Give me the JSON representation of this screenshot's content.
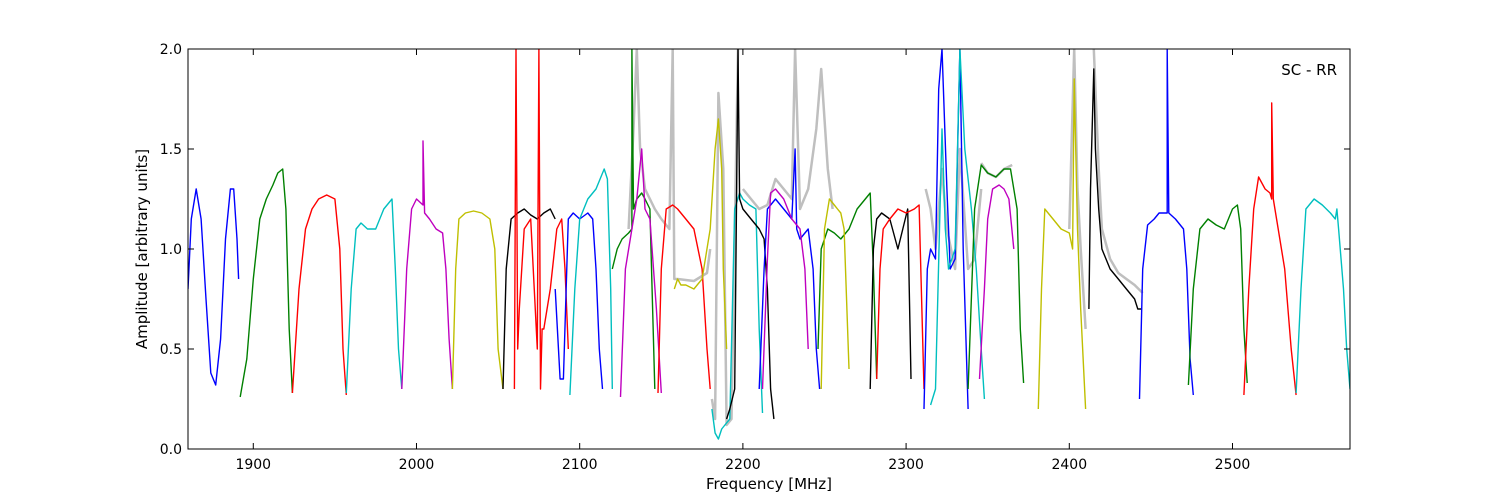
{
  "chart_data": {
    "type": "line",
    "title": "",
    "xlabel": "Frequency [MHz]",
    "ylabel": "Amplitude [arbitrary units]",
    "xlim": [
      1860,
      2572
    ],
    "ylim": [
      0.0,
      2.0
    ],
    "xticks": [
      1900,
      2000,
      2100,
      2200,
      2300,
      2400,
      2500
    ],
    "xtick_labels": [
      "1900",
      "2000",
      "2100",
      "2200",
      "2300",
      "2400",
      "2500"
    ],
    "yticks": [
      0.0,
      0.5,
      1.0,
      1.5,
      2.0
    ],
    "ytick_labels": [
      "0.0",
      "0.5",
      "1.0",
      "1.5",
      "2.0"
    ],
    "annotation": "SC - RR",
    "annotation_position": "top-right",
    "grid": false,
    "reference_color": "#bfbfbf",
    "reference_segments": [
      {
        "x": [
          2130,
          2133,
          2135,
          2137,
          2140,
          2143,
          2146,
          2150
        ],
        "y": [
          1.1,
          1.6,
          2.0,
          1.5,
          1.3,
          1.25,
          1.2,
          1.15
        ]
      },
      {
        "x": [
          2150,
          2155,
          2157,
          2158,
          2160,
          2170,
          2178,
          2180
        ],
        "y": [
          1.15,
          1.1,
          2.0,
          0.85,
          0.85,
          0.84,
          0.88,
          1.0
        ]
      },
      {
        "x": [
          2181,
          2183,
          2185,
          2188,
          2190,
          2193,
          2197
        ],
        "y": [
          0.25,
          0.15,
          1.78,
          1.4,
          0.12,
          0.15,
          2.0
        ]
      },
      {
        "x": [
          2200,
          2205,
          2210,
          2215,
          2220,
          2225,
          2230,
          2232,
          2235,
          2240,
          2245,
          2248,
          2252,
          2255
        ],
        "y": [
          1.3,
          1.25,
          1.2,
          1.22,
          1.35,
          1.3,
          1.25,
          2.0,
          1.2,
          1.3,
          1.6,
          1.9,
          1.4,
          1.2
        ]
      },
      {
        "x": [
          2312,
          2315,
          2318,
          2322,
          2325,
          2330,
          2333,
          2338,
          2342,
          2346
        ],
        "y": [
          1.3,
          1.2,
          1.0,
          1.4,
          1.1,
          0.9,
          1.5,
          0.9,
          0.95,
          1.3
        ]
      },
      {
        "x": [
          2346,
          2350,
          2355,
          2360,
          2365
        ],
        "y": [
          1.43,
          1.38,
          1.36,
          1.4,
          1.42
        ]
      },
      {
        "x": [
          2400,
          2403,
          2405,
          2407,
          2410
        ],
        "y": [
          1.1,
          2.0,
          1.3,
          1.0,
          0.6
        ]
      },
      {
        "x": [
          2415,
          2418,
          2420,
          2425,
          2430,
          2435,
          2440,
          2445
        ],
        "y": [
          2.0,
          1.4,
          1.1,
          0.95,
          0.88,
          0.85,
          0.82,
          0.78
        ]
      }
    ],
    "series": [
      {
        "color": "#0000ff",
        "x": [
          1860,
          1862,
          1865,
          1868,
          1871,
          1874,
          1877,
          1880,
          1883,
          1886,
          1888,
          1890,
          1891
        ],
        "y": [
          0.8,
          1.15,
          1.3,
          1.15,
          0.75,
          0.38,
          0.32,
          0.55,
          1.05,
          1.3,
          1.3,
          1.05,
          0.85
        ]
      },
      {
        "color": "#008000",
        "x": [
          1892,
          1896,
          1900,
          1904,
          1908,
          1912,
          1915,
          1918,
          1920,
          1922,
          1924
        ],
        "y": [
          0.26,
          0.45,
          0.85,
          1.15,
          1.25,
          1.32,
          1.38,
          1.4,
          1.2,
          0.6,
          0.28
        ]
      },
      {
        "color": "#ff0000",
        "x": [
          1924,
          1928,
          1932,
          1936,
          1940,
          1945,
          1950,
          1953,
          1955,
          1957
        ],
        "y": [
          0.28,
          0.8,
          1.1,
          1.2,
          1.25,
          1.27,
          1.25,
          1.0,
          0.5,
          0.27
        ]
      },
      {
        "color": "#00bfbf",
        "x": [
          1957,
          1960,
          1963,
          1966,
          1970,
          1975,
          1980,
          1985,
          1987,
          1989,
          1991
        ],
        "y": [
          0.28,
          0.8,
          1.1,
          1.13,
          1.1,
          1.1,
          1.2,
          1.25,
          0.9,
          0.5,
          0.3
        ]
      },
      {
        "color": "#bf00bf",
        "x": [
          1991,
          1994,
          1997,
          2000,
          2004,
          2004,
          2005,
          2008,
          2012,
          2016,
          2018,
          2020,
          2022
        ],
        "y": [
          0.3,
          0.9,
          1.2,
          1.25,
          1.22,
          1.54,
          1.18,
          1.15,
          1.1,
          1.08,
          0.9,
          0.55,
          0.3
        ]
      },
      {
        "color": "#bfbf00",
        "x": [
          2022,
          2024,
          2026,
          2030,
          2035,
          2040,
          2045,
          2048,
          2050,
          2053
        ],
        "y": [
          0.3,
          0.9,
          1.15,
          1.18,
          1.19,
          1.18,
          1.15,
          1.0,
          0.5,
          0.3
        ]
      },
      {
        "color": "#000000",
        "x": [
          2053,
          2055,
          2058,
          2062,
          2066,
          2070,
          2074,
          2078,
          2082,
          2085
        ],
        "y": [
          0.3,
          0.9,
          1.15,
          1.18,
          1.2,
          1.17,
          1.15,
          1.18,
          1.2,
          1.15
        ]
      },
      {
        "color": "#ff0000",
        "x": [
          2060,
          2061,
          2062,
          2063,
          2066,
          2070,
          2074,
          2075,
          2076,
          2077,
          2078,
          2082,
          2086,
          2089,
          2091,
          2093
        ],
        "y": [
          0.3,
          2.0,
          0.5,
          0.7,
          1.1,
          1.15,
          0.5,
          2.0,
          0.3,
          0.6,
          0.6,
          0.8,
          1.1,
          1.15,
          0.9,
          0.5
        ]
      },
      {
        "color": "#0000ff",
        "x": [
          2085,
          2088,
          2090,
          2093,
          2096,
          2100,
          2105,
          2108,
          2110,
          2112,
          2114
        ],
        "y": [
          0.8,
          0.35,
          0.35,
          1.15,
          1.18,
          1.15,
          1.18,
          1.15,
          0.9,
          0.5,
          0.3
        ]
      },
      {
        "color": "#00bfbf",
        "x": [
          2094,
          2097,
          2100,
          2105,
          2110,
          2115,
          2117,
          2119,
          2120
        ],
        "y": [
          0.27,
          0.8,
          1.15,
          1.25,
          1.3,
          1.4,
          1.35,
          0.8,
          0.3
        ]
      },
      {
        "color": "#008000",
        "x": [
          2120,
          2123,
          2126,
          2130,
          2132,
          2132,
          2133,
          2135,
          2138,
          2140,
          2143,
          2146
        ],
        "y": [
          0.9,
          1.0,
          1.05,
          1.08,
          1.1,
          2.0,
          1.2,
          1.25,
          1.28,
          1.25,
          1.2,
          0.3
        ]
      },
      {
        "color": "#bf00bf",
        "x": [
          2125,
          2128,
          2132,
          2135,
          2138,
          2140,
          2143,
          2147,
          2150
        ],
        "y": [
          0.26,
          0.9,
          1.1,
          1.25,
          1.5,
          1.2,
          1.15,
          0.7,
          0.28
        ]
      },
      {
        "color": "#ff0000",
        "x": [
          2148,
          2150,
          2153,
          2157,
          2160,
          2165,
          2170,
          2175,
          2178,
          2180
        ],
        "y": [
          0.28,
          0.9,
          1.2,
          1.22,
          1.2,
          1.15,
          1.1,
          0.9,
          0.5,
          0.3
        ]
      },
      {
        "color": "#bfbf00",
        "x": [
          2158,
          2160,
          2162,
          2165,
          2170,
          2175,
          2180,
          2183,
          2185,
          2187,
          2188,
          2190
        ],
        "y": [
          0.8,
          0.85,
          0.82,
          0.82,
          0.8,
          0.85,
          1.1,
          1.5,
          1.65,
          1.4,
          0.9,
          0.5
        ]
      },
      {
        "color": "#00bfbf",
        "x": [
          2181,
          2183,
          2185,
          2187,
          2189,
          2192,
          2195,
          2198,
          2200,
          2204,
          2208,
          2210,
          2212
        ],
        "y": [
          0.2,
          0.08,
          0.05,
          0.1,
          0.12,
          0.15,
          1.2,
          1.28,
          1.25,
          1.22,
          1.2,
          0.6,
          0.18
        ]
      },
      {
        "color": "#000000",
        "x": [
          2190,
          2192,
          2195,
          2197,
          2198,
          2200,
          2205,
          2210,
          2213,
          2215,
          2217,
          2219
        ],
        "y": [
          0.15,
          0.2,
          0.3,
          2.0,
          1.25,
          1.2,
          1.15,
          1.1,
          1.05,
          0.8,
          0.3,
          0.15
        ]
      },
      {
        "color": "#0000ff",
        "x": [
          2210,
          2213,
          2215,
          2220,
          2225,
          2230,
          2232,
          2233,
          2235,
          2240,
          2243,
          2245,
          2247
        ],
        "y": [
          0.3,
          0.9,
          1.2,
          1.25,
          1.2,
          1.15,
          1.5,
          1.1,
          1.05,
          1.1,
          0.9,
          0.5,
          0.3
        ]
      },
      {
        "color": "#bf00bf",
        "x": [
          2212,
          2215,
          2217,
          2220,
          2225,
          2230,
          2235,
          2238,
          2240
        ],
        "y": [
          0.3,
          0.95,
          1.28,
          1.3,
          1.25,
          1.15,
          1.1,
          0.9,
          0.5
        ]
      },
      {
        "color": "#008000",
        "x": [
          2246,
          2248,
          2252,
          2256,
          2260,
          2265,
          2270,
          2275,
          2278,
          2280,
          2282
        ],
        "y": [
          0.5,
          1.0,
          1.1,
          1.08,
          1.05,
          1.1,
          1.2,
          1.25,
          1.28,
          0.9,
          0.35
        ]
      },
      {
        "color": "#bfbf00",
        "x": [
          2248,
          2250,
          2253,
          2256,
          2258,
          2260,
          2262,
          2265
        ],
        "y": [
          0.3,
          1.1,
          1.25,
          1.22,
          1.2,
          1.18,
          1.1,
          0.4
        ]
      },
      {
        "color": "#000000",
        "x": [
          2278,
          2280,
          2282,
          2285,
          2290,
          2295,
          2298,
          2301,
          2303
        ],
        "y": [
          0.3,
          1.0,
          1.15,
          1.18,
          1.15,
          1.0,
          1.1,
          1.2,
          0.35
        ]
      },
      {
        "color": "#ff0000",
        "x": [
          2282,
          2284,
          2286,
          2290,
          2295,
          2300,
          2305,
          2308,
          2311
        ],
        "y": [
          0.35,
          0.9,
          1.1,
          1.15,
          1.2,
          1.18,
          1.2,
          1.22,
          0.3
        ]
      },
      {
        "color": "#0000ff",
        "x": [
          2311,
          2313,
          2315,
          2318,
          2320,
          2322,
          2325,
          2327,
          2330,
          2333,
          2335,
          2338
        ],
        "y": [
          0.2,
          0.9,
          1.0,
          0.95,
          1.8,
          2.0,
          1.3,
          0.9,
          0.95,
          2.0,
          1.0,
          0.2
        ]
      },
      {
        "color": "#00bfbf",
        "x": [
          2315,
          2318,
          2322,
          2324,
          2326,
          2330,
          2333,
          2336,
          2340,
          2343,
          2346,
          2348
        ],
        "y": [
          0.22,
          0.3,
          1.6,
          1.1,
          0.9,
          1.0,
          2.0,
          1.5,
          1.2,
          0.9,
          0.5,
          0.25
        ]
      },
      {
        "color": "#008000",
        "x": [
          2338,
          2342,
          2346,
          2350,
          2355,
          2360,
          2364,
          2368,
          2370,
          2372
        ],
        "y": [
          0.3,
          1.2,
          1.42,
          1.38,
          1.36,
          1.4,
          1.4,
          1.2,
          0.6,
          0.33
        ]
      },
      {
        "color": "#bf00bf",
        "x": [
          2345,
          2348,
          2350,
          2353,
          2357,
          2360,
          2363,
          2366
        ],
        "y": [
          0.35,
          0.8,
          1.15,
          1.3,
          1.32,
          1.3,
          1.25,
          1.0
        ]
      },
      {
        "color": "#bfbf00",
        "x": [
          2381,
          2383,
          2385,
          2390,
          2395,
          2400,
          2402,
          2403,
          2405,
          2407,
          2410
        ],
        "y": [
          0.2,
          0.8,
          1.2,
          1.15,
          1.1,
          1.08,
          1.0,
          1.85,
          1.1,
          0.7,
          0.2
        ]
      },
      {
        "color": "#000000",
        "x": [
          2412,
          2413,
          2415,
          2416,
          2418,
          2420,
          2425,
          2430,
          2435,
          2440,
          2442,
          2444
        ],
        "y": [
          0.7,
          1.3,
          1.9,
          1.5,
          1.2,
          1.0,
          0.9,
          0.85,
          0.8,
          0.75,
          0.7,
          0.7
        ]
      },
      {
        "color": "#0000ff",
        "x": [
          2443,
          2445,
          2448,
          2452,
          2455,
          2458,
          2460,
          2460,
          2461,
          2465,
          2470,
          2472,
          2474,
          2476
        ],
        "y": [
          0.25,
          0.9,
          1.12,
          1.15,
          1.18,
          1.18,
          1.18,
          2.0,
          1.18,
          1.15,
          1.1,
          0.9,
          0.45,
          0.27
        ]
      },
      {
        "color": "#008000",
        "x": [
          2473,
          2476,
          2480,
          2485,
          2490,
          2495,
          2500,
          2503,
          2505,
          2507,
          2509
        ],
        "y": [
          0.32,
          0.8,
          1.1,
          1.15,
          1.12,
          1.1,
          1.2,
          1.22,
          1.1,
          0.6,
          0.33
        ]
      },
      {
        "color": "#ff0000",
        "x": [
          2507,
          2510,
          2513,
          2516,
          2520,
          2523,
          2524,
          2524,
          2525,
          2528,
          2532,
          2536,
          2539
        ],
        "y": [
          0.27,
          0.8,
          1.2,
          1.36,
          1.3,
          1.28,
          1.25,
          1.73,
          1.25,
          1.1,
          0.9,
          0.5,
          0.27
        ]
      },
      {
        "color": "#00bfbf",
        "x": [
          2539,
          2542,
          2545,
          2550,
          2555,
          2560,
          2563,
          2564,
          2565,
          2568,
          2570,
          2572
        ],
        "y": [
          0.28,
          0.8,
          1.2,
          1.25,
          1.22,
          1.18,
          1.15,
          1.2,
          1.1,
          0.8,
          0.5,
          0.3
        ]
      }
    ]
  }
}
